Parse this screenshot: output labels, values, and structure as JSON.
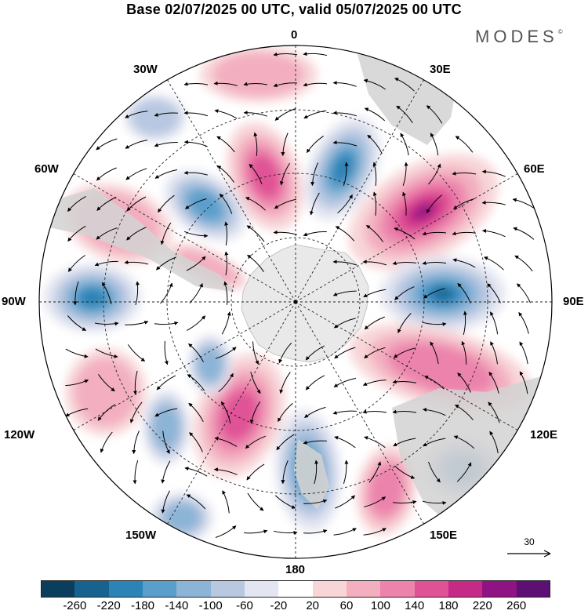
{
  "header": {
    "title": "Base 02/07/2025 00 UTC, valid 05/07/2025 00 UTC",
    "brand": "MODES",
    "brand_mark": "©"
  },
  "map": {
    "projection": "south-polar-stereographic",
    "longitude_labels": [
      "0",
      "30E",
      "60E",
      "90E",
      "120E",
      "150E",
      "180",
      "150W",
      "120W",
      "90W",
      "60W",
      "30W"
    ],
    "reference_vector": {
      "value": "30"
    }
  },
  "colorbar": {
    "colors": [
      "#0b3d5c",
      "#17628f",
      "#2c83b6",
      "#5a9fcb",
      "#8cb4d6",
      "#b8c8e1",
      "#e3e5f1",
      "#ffffff",
      "#f8d6d8",
      "#f3afc0",
      "#ec83ac",
      "#e05296",
      "#c62a87",
      "#8f1383",
      "#5e0f74"
    ],
    "tick_labels": [
      "-260",
      "-220",
      "-180",
      "-140",
      "-100",
      "-60",
      "-20",
      "20",
      "60",
      "100",
      "140",
      "180",
      "220",
      "260"
    ]
  },
  "colors": {
    "land": "#d2d2d2",
    "antarctica": "#e9e9e9",
    "grid": "#222222"
  }
}
